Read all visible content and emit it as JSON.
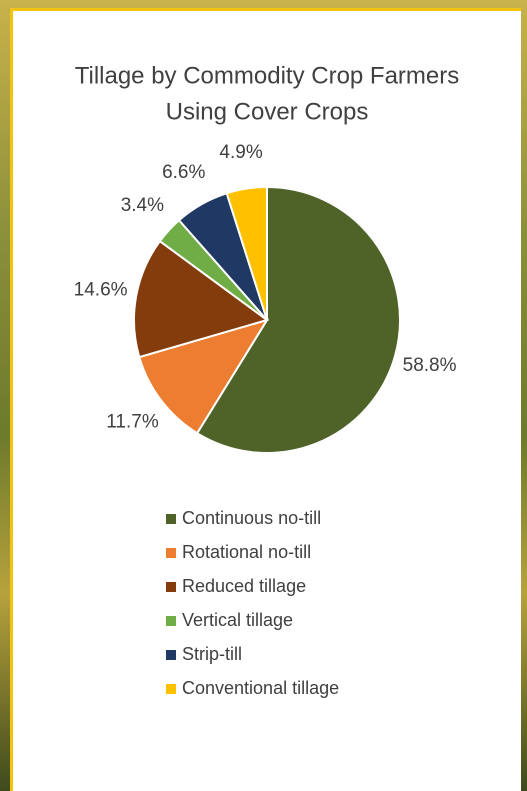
{
  "chart_data": {
    "type": "pie",
    "title": [
      "Tillage by Commodity Crop Farmers",
      "Using Cover Crops"
    ],
    "categories": [
      "Continuous no-till",
      "Rotational no-till",
      "Reduced tillage",
      "Vertical tillage",
      "Strip-till",
      "Conventional tillage"
    ],
    "values": [
      58.8,
      11.7,
      14.6,
      3.4,
      6.6,
      4.9
    ],
    "value_labels": [
      "58.8%",
      "11.7%",
      "14.6%",
      "3.4%",
      "6.6%",
      "4.9%"
    ],
    "colors": [
      "#4f6228",
      "#ed7d31",
      "#843c0c",
      "#70ad47",
      "#1f3864",
      "#ffc000"
    ]
  }
}
